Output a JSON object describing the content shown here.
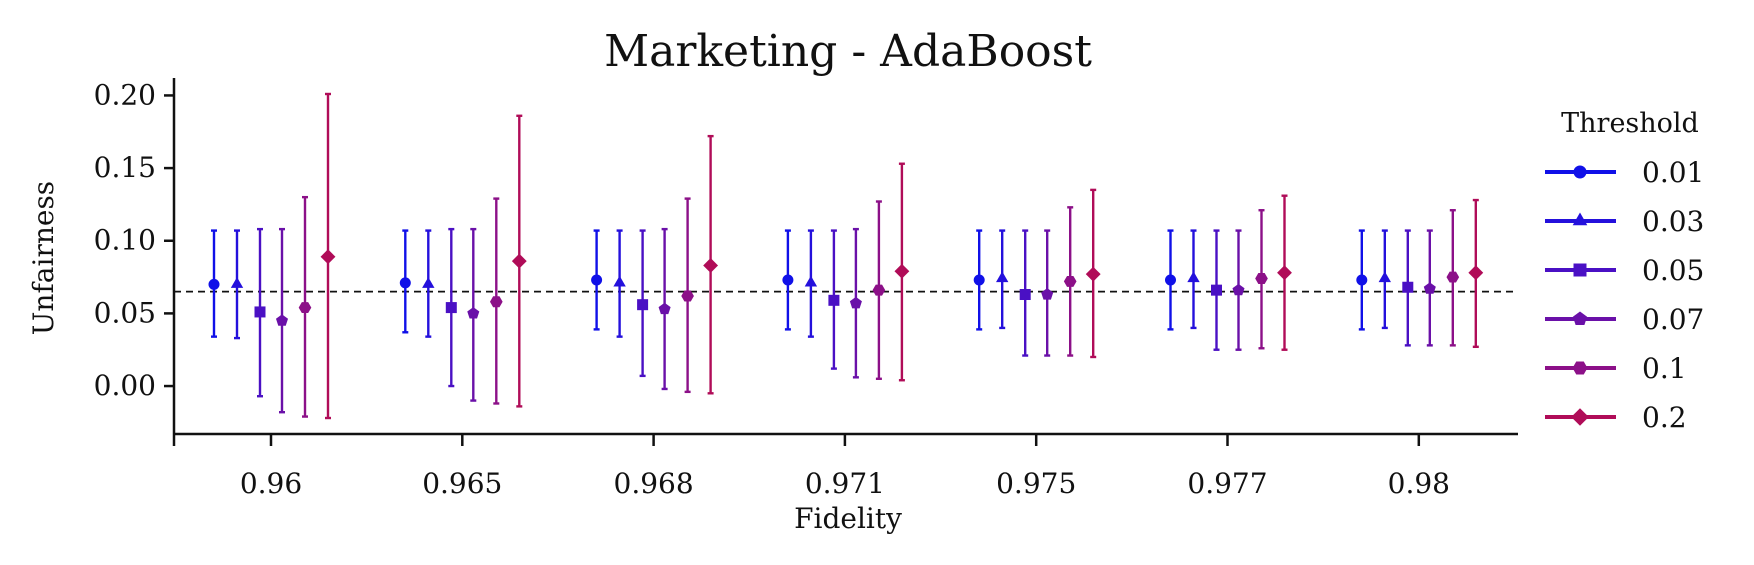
{
  "chart_data": {
    "type": "scatter",
    "title": "Marketing - AdaBoost",
    "xlabel": "Fidelity",
    "ylabel": "Unfairness",
    "categories": [
      "0.96",
      "0.965",
      "0.968",
      "0.971",
      "0.975",
      "0.977",
      "0.98"
    ],
    "ylim": [
      -0.033,
      0.212
    ],
    "yticks": [
      "0.00",
      "0.05",
      "0.10",
      "0.15",
      "0.20"
    ],
    "ytick_values": [
      0.0,
      0.05,
      0.1,
      0.15,
      0.2
    ],
    "reference_line": 0.065,
    "grid": false,
    "legend": {
      "title": "Threshold",
      "position": "right"
    },
    "series": [
      {
        "name": "0.01",
        "color": "#1010e8",
        "marker": "circle",
        "values": [
          0.07,
          0.071,
          0.073,
          0.073,
          0.073,
          0.073,
          0.073
        ],
        "lower": [
          0.034,
          0.037,
          0.039,
          0.039,
          0.039,
          0.039,
          0.039
        ],
        "upper": [
          0.107,
          0.107,
          0.107,
          0.107,
          0.107,
          0.107,
          0.107
        ]
      },
      {
        "name": "0.03",
        "color": "#2410dc",
        "marker": "triangle",
        "values": [
          0.07,
          0.07,
          0.071,
          0.071,
          0.074,
          0.074,
          0.074
        ],
        "lower": [
          0.033,
          0.034,
          0.034,
          0.034,
          0.04,
          0.04,
          0.04
        ],
        "upper": [
          0.107,
          0.107,
          0.107,
          0.107,
          0.107,
          0.107,
          0.107
        ]
      },
      {
        "name": "0.05",
        "color": "#4a10c4",
        "marker": "square",
        "values": [
          0.051,
          0.054,
          0.056,
          0.059,
          0.063,
          0.066,
          0.068
        ],
        "lower": [
          -0.007,
          0.0,
          0.007,
          0.012,
          0.021,
          0.025,
          0.028
        ],
        "upper": [
          0.108,
          0.108,
          0.107,
          0.107,
          0.107,
          0.107,
          0.107
        ]
      },
      {
        "name": "0.07",
        "color": "#6a10a8",
        "marker": "pentagon",
        "values": [
          0.045,
          0.05,
          0.053,
          0.057,
          0.063,
          0.066,
          0.067
        ],
        "lower": [
          -0.018,
          -0.01,
          -0.002,
          0.006,
          0.021,
          0.025,
          0.028
        ],
        "upper": [
          0.108,
          0.108,
          0.108,
          0.108,
          0.107,
          0.107,
          0.107
        ]
      },
      {
        "name": "0.1",
        "color": "#8c1088",
        "marker": "hexagon",
        "values": [
          0.054,
          0.058,
          0.062,
          0.066,
          0.072,
          0.074,
          0.075
        ],
        "lower": [
          -0.021,
          -0.012,
          -0.004,
          0.005,
          0.021,
          0.026,
          0.028
        ],
        "upper": [
          0.13,
          0.129,
          0.129,
          0.127,
          0.123,
          0.121,
          0.121
        ]
      },
      {
        "name": "0.2",
        "color": "#b00c58",
        "marker": "diamond",
        "values": [
          0.089,
          0.086,
          0.083,
          0.079,
          0.077,
          0.078,
          0.078
        ],
        "lower": [
          -0.022,
          -0.014,
          -0.005,
          0.004,
          0.02,
          0.025,
          0.027
        ],
        "upper": [
          0.201,
          0.186,
          0.172,
          0.153,
          0.135,
          0.131,
          0.128
        ]
      }
    ]
  }
}
